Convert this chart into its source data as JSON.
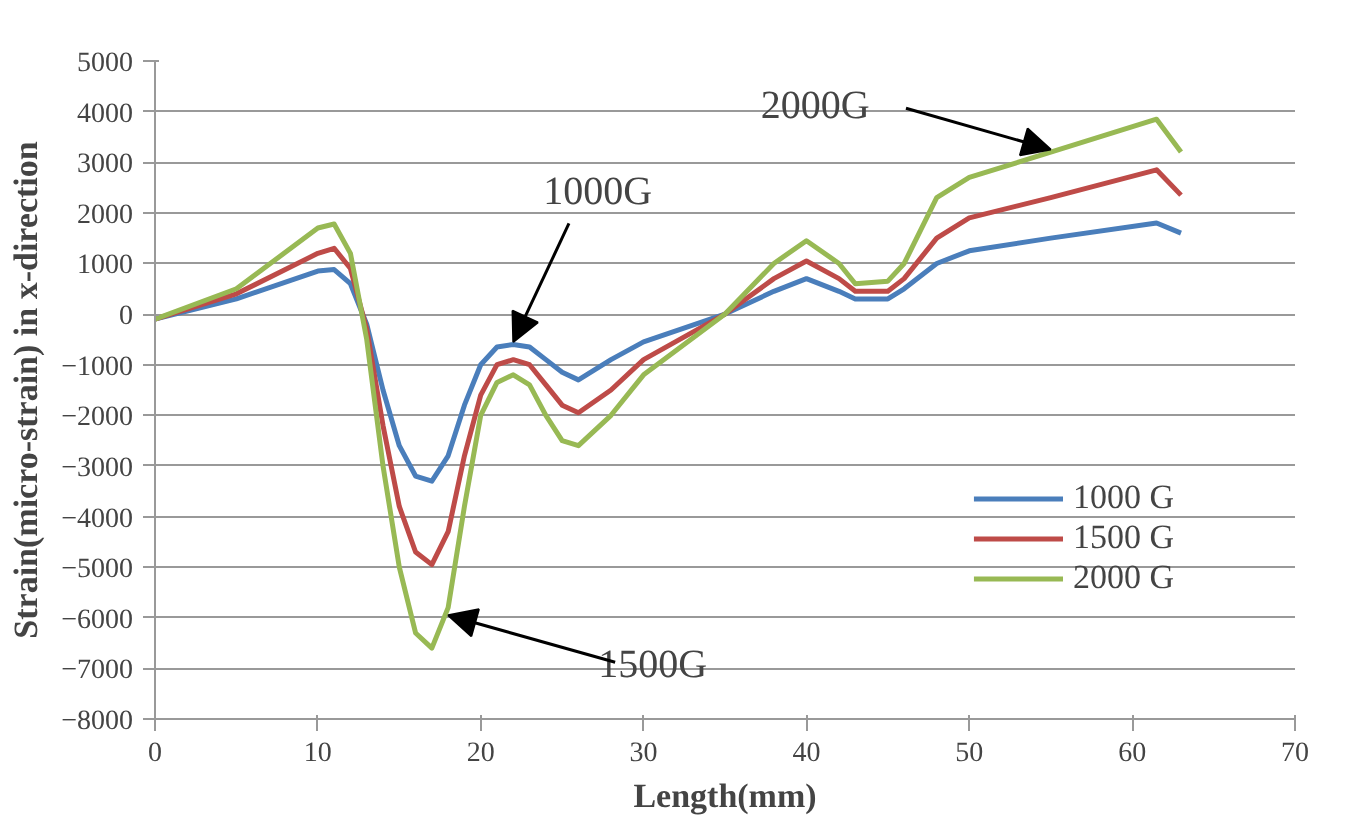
{
  "chart_data": {
    "type": "line",
    "xlabel": "Length(mm)",
    "ylabel": "Strain(micro-strain) in x-direction",
    "xlim": [
      0,
      70
    ],
    "xticks": [
      0,
      10,
      20,
      30,
      40,
      50,
      60,
      70
    ],
    "ylim": [
      -8000,
      5000
    ],
    "yticks": [
      -8000,
      -7000,
      -6000,
      -5000,
      -4000,
      -3000,
      -2000,
      -1000,
      0,
      1000,
      2000,
      3000,
      4000,
      5000
    ],
    "grid": "y",
    "legend": "bottom right",
    "marker": "none",
    "line_style": "solid",
    "x": [
      0,
      5,
      10,
      11,
      12,
      13,
      14,
      15,
      16,
      17,
      18,
      19,
      20,
      21,
      22,
      23,
      24,
      25,
      26,
      28,
      30,
      35,
      38,
      40,
      42,
      43,
      45,
      46,
      48,
      50,
      55,
      61.5,
      63
    ],
    "series": [
      {
        "name": "1000 G",
        "color": "#4a7ebb",
        "values": [
          -100,
          300,
          850,
          880,
          600,
          -200,
          -1500,
          -2600,
          -3200,
          -3300,
          -2800,
          -1800,
          -1000,
          -650,
          -600,
          -650,
          -900,
          -1150,
          -1300,
          -900,
          -550,
          0,
          450,
          700,
          450,
          300,
          300,
          500,
          1000,
          1250,
          1500,
          1800,
          1600
        ]
      },
      {
        "name": "1500 G",
        "color": "#be4b48",
        "values": [
          -100,
          400,
          1200,
          1300,
          900,
          -300,
          -2200,
          -3800,
          -4700,
          -4950,
          -4300,
          -2800,
          -1600,
          -1000,
          -900,
          -1000,
          -1400,
          -1800,
          -1950,
          -1500,
          -900,
          0,
          700,
          1050,
          700,
          450,
          450,
          700,
          1500,
          1900,
          2300,
          2850,
          2350
        ]
      },
      {
        "name": "2000 G",
        "color": "#98b954",
        "values": [
          -100,
          500,
          1700,
          1780,
          1200,
          -500,
          -3000,
          -5000,
          -6300,
          -6600,
          -5800,
          -3800,
          -2000,
          -1350,
          -1200,
          -1400,
          -2000,
          -2500,
          -2600,
          -2000,
          -1200,
          0,
          1000,
          1450,
          1000,
          600,
          650,
          1000,
          2300,
          2700,
          3200,
          3850,
          3200
        ]
      }
    ],
    "annotations": [
      {
        "text": "1000G",
        "x": 22,
        "y": -550
      },
      {
        "text": "1500G",
        "x": 18,
        "y": -5950
      },
      {
        "text": "2000G",
        "x": 55,
        "y": 3250
      }
    ]
  }
}
